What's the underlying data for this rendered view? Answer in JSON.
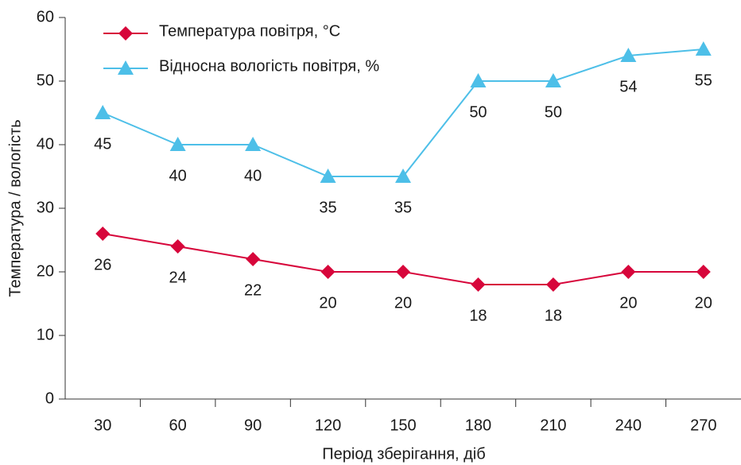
{
  "chart_data": {
    "type": "line",
    "x_label": "Період зберігання, діб",
    "y_label": "Температура / вологість",
    "categories": [
      "30",
      "60",
      "90",
      "120",
      "150",
      "180",
      "210",
      "240",
      "270"
    ],
    "series": [
      {
        "name": "Температура повітря, °С",
        "color": "#d7063b",
        "marker": "diamond",
        "values": [
          26,
          24,
          22,
          20,
          20,
          18,
          18,
          20,
          20
        ]
      },
      {
        "name": "Відносна вологість повітря, %",
        "color": "#4dbfe8",
        "marker": "triangle",
        "values": [
          45,
          40,
          40,
          35,
          35,
          50,
          50,
          54,
          55
        ]
      }
    ],
    "ylim": [
      0,
      60
    ],
    "yticks": [
      0,
      10,
      20,
      30,
      40,
      50,
      60
    ],
    "legend": "upper left",
    "data_labels": true
  }
}
